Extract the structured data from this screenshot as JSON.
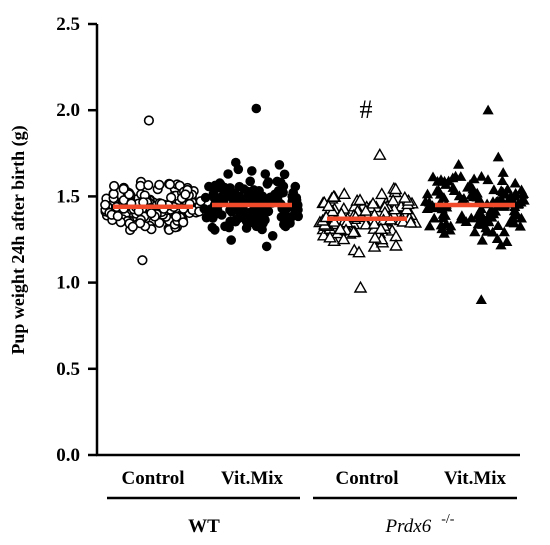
{
  "chart_data": {
    "type": "scatter",
    "subtype": "dot-strip-plot",
    "ylabel": "Pup weight 24h after birth (g)",
    "ylim": [
      0,
      2.5
    ],
    "yticks": [
      "0.0",
      "0.5",
      "1.0",
      "1.5",
      "2.0",
      "2.5"
    ],
    "grid": false,
    "mean_line_color": "#f04a2a",
    "categories": [
      {
        "label": "Control",
        "group": "WT",
        "marker": "open-circle",
        "mean": 1.44,
        "min": 1.13,
        "max": 1.94
      },
      {
        "label": "Vit.Mix",
        "group": "WT",
        "marker": "filled-circle",
        "mean": 1.45,
        "min": 1.21,
        "max": 2.01
      },
      {
        "label": "Control",
        "group": "Prdx6 -/-",
        "marker": "open-triangle",
        "mean": 1.37,
        "min": 0.97,
        "max": 1.74
      },
      {
        "label": "Vit.Mix",
        "group": "Prdx6 -/-",
        "marker": "filled-triangle",
        "mean": 1.45,
        "min": 0.9,
        "max": 2.0
      }
    ],
    "groups": {
      "wt": "WT",
      "ko_name": "Prdx6",
      "ko_sup": "-/-"
    },
    "annotation": "#"
  }
}
